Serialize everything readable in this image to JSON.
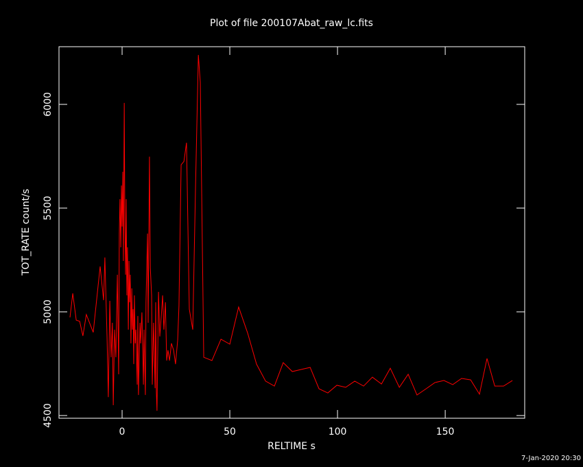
{
  "chart_data": {
    "type": "line",
    "title": "Plot of file 200107Abat_raw_lc.fits",
    "x_label": "RELTIME  s",
    "y_label": "TOT_RATE  count/s",
    "footer": "7-Jan-2020 20:30",
    "xlim": [
      -29.3,
      186.9
    ],
    "ylim": [
      4487,
      6278
    ],
    "xticks": [
      0,
      50,
      100,
      150
    ],
    "yticks": [
      4500,
      5000,
      5500,
      6000
    ],
    "series": [
      {
        "color": "#ff0000",
        "x": [
          -24.2,
          -22.9,
          -21.3,
          -19.7,
          -18.2,
          -16.6,
          -13.4,
          -10.2,
          -8.6,
          -8.0,
          -7.0,
          -6.4,
          -5.7,
          -5.1,
          -4.5,
          -4.1,
          -3.5,
          -2.9,
          -2.2,
          -1.6,
          -1.3,
          -1.0,
          -0.6,
          -0.3,
          0,
          0.3,
          0.6,
          1.0,
          1.3,
          1.6,
          1.9,
          2.2,
          2.5,
          2.9,
          3.2,
          3.5,
          3.8,
          4.1,
          4.5,
          4.8,
          5.1,
          5.4,
          5.7,
          6.1,
          6.4,
          7.0,
          7.3,
          7.6,
          8.3,
          8.6,
          9.2,
          9.9,
          10.2,
          10.8,
          11.1,
          11.8,
          12.1,
          12.7,
          13.1,
          13.7,
          14.0,
          14.6,
          15.3,
          15.6,
          15.9,
          16.2,
          16.6,
          16.9,
          17.5,
          18.2,
          18.8,
          19.4,
          20.1,
          20.7,
          21.3,
          22.0,
          22.9,
          23.9,
          24.8,
          25.8,
          26.4,
          27.4,
          28.7,
          29.9,
          31.2,
          32.8,
          34.1,
          35.4,
          36.3,
          37.9,
          41.7,
          45.9,
          50.0,
          54.1,
          58.3,
          62.4,
          66.6,
          70.7,
          74.8,
          79.0,
          83.1,
          87.3,
          91.4,
          95.5,
          99.7,
          103.8,
          108.0,
          112.1,
          116.2,
          120.4,
          124.5,
          128.7,
          132.8,
          136.9,
          141.1,
          145.2,
          149.4,
          153.5,
          157.6,
          161.8,
          165.9,
          169.4,
          173.0,
          177.1,
          181.2
        ],
        "values": [
          4973,
          5089,
          4960,
          4954,
          4884,
          4987,
          4901,
          5219,
          5056,
          5262,
          4881,
          4589,
          5053,
          4781,
          4947,
          4550,
          4914,
          4781,
          5179,
          4699,
          5377,
          5543,
          5311,
          5609,
          5411,
          5675,
          5245,
          6007,
          5411,
          5179,
          5543,
          5079,
          5311,
          4914,
          5245,
          5046,
          5179,
          4848,
          5113,
          4914,
          5013,
          4748,
          5079,
          4848,
          4914,
          4649,
          4980,
          4599,
          4947,
          4848,
          4997,
          4649,
          4914,
          4599,
          5046,
          5377,
          4947,
          5748,
          5212,
          5079,
          4649,
          4947,
          4632,
          5046,
          4616,
          4523,
          4848,
          5096,
          4881,
          4980,
          5079,
          4914,
          5046,
          4765,
          4815,
          4765,
          4848,
          4815,
          4748,
          4864,
          5030,
          5709,
          5725,
          5815,
          5013,
          4914,
          5609,
          6238,
          6106,
          4781,
          4765,
          4868,
          4844,
          5023,
          4897,
          4748,
          4666,
          4642,
          4755,
          4712,
          4722,
          4732,
          4629,
          4609,
          4646,
          4636,
          4666,
          4642,
          4685,
          4652,
          4728,
          4636,
          4699,
          4599,
          4629,
          4659,
          4669,
          4649,
          4679,
          4672,
          4603,
          4775,
          4642,
          4642,
          4669
        ]
      }
    ]
  }
}
